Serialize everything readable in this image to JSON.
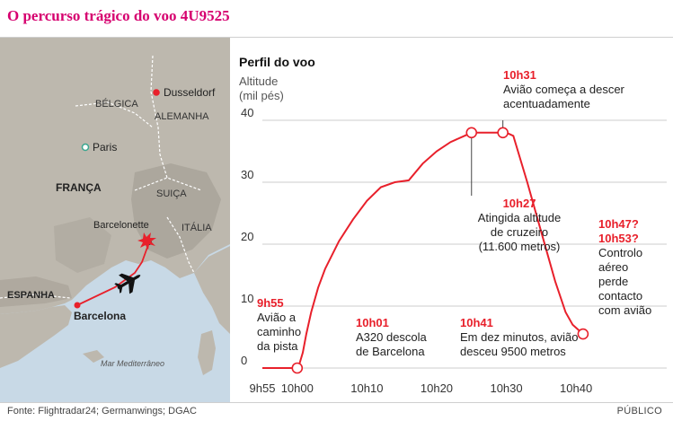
{
  "title": "O percurso trágico do voo 4U9525",
  "source": "Fonte: Flightradar24; Germanwings; DGAC",
  "brand": "PÚBLICO",
  "colors": {
    "accent": "#d6006f",
    "line": "#e8202b",
    "grid": "#cccccc",
    "sea": "#c8d9e6",
    "land": "#b9b5ac"
  },
  "map": {
    "labels": {
      "belgica": "BÉLGICA",
      "alemanha": "ALEMANHA",
      "franca": "FRANÇA",
      "suica": "SUIÇA",
      "italia": "ITÁLIA",
      "espanha": "ESPANHA",
      "mar": "Mar Mediterrâneo"
    },
    "cities": {
      "dusseldorf": "Dusseldorf",
      "paris": "Paris",
      "barcelonette": "Barcelonette",
      "barcelona": "Barcelona"
    },
    "icons": [
      "airplane-icon",
      "crash-burst-icon"
    ]
  },
  "chart_data": {
    "type": "line",
    "title": "Perfil do voo",
    "ylabel": "Altitude (mil pés)",
    "ylabel_lines": [
      "Altitude",
      "(mil pés)"
    ],
    "ylim": [
      0,
      40
    ],
    "yticks": [
      0,
      10,
      20,
      30,
      40
    ],
    "xticks": [
      "9h55",
      "10h00",
      "10h10",
      "10h20",
      "10h30",
      "10h40"
    ],
    "xticks_minutes": [
      -5,
      0,
      10,
      20,
      30,
      40
    ],
    "points": [
      [
        -5,
        0
      ],
      [
        0,
        0
      ],
      [
        0.3,
        0.6
      ],
      [
        0.8,
        2.5
      ],
      [
        1.3,
        5.5
      ],
      [
        2,
        9
      ],
      [
        3,
        13
      ],
      [
        4,
        16
      ],
      [
        6,
        20.5
      ],
      [
        8,
        24
      ],
      [
        10,
        27
      ],
      [
        12,
        29.2
      ],
      [
        14,
        30
      ],
      [
        16,
        30.3
      ],
      [
        18,
        33
      ],
      [
        20,
        35
      ],
      [
        22,
        36.5
      ],
      [
        24,
        37.5
      ],
      [
        25,
        38
      ],
      [
        26,
        38
      ],
      [
        29.5,
        38
      ],
      [
        30,
        38
      ],
      [
        31,
        37.5
      ],
      [
        33,
        30
      ],
      [
        35,
        22
      ],
      [
        37,
        14
      ],
      [
        38.5,
        9
      ],
      [
        39.5,
        7
      ],
      [
        40,
        6.5
      ],
      [
        41,
        5.5
      ]
    ],
    "markers": [
      [
        0,
        0
      ],
      [
        25,
        38
      ],
      [
        29.5,
        38
      ],
      [
        41,
        5.5
      ]
    ],
    "annotations": [
      {
        "time": "9h55",
        "lines": [
          "Avião a",
          "caminho",
          "da pista"
        ]
      },
      {
        "time": "10h01",
        "lines": [
          "A320 descola",
          "de Barcelona"
        ]
      },
      {
        "time": "10h27",
        "lines": [
          "Atingida altitude",
          "de cruzeiro",
          "(11.600 metros)"
        ]
      },
      {
        "time": "10h31",
        "lines": [
          "Avião começa a descer",
          "acentuadamente"
        ]
      },
      {
        "time": "10h41",
        "lines": [
          "Em dez minutos, avião",
          "desceu 9500 metros"
        ]
      },
      {
        "time": "10h47?",
        "time2": "10h53?",
        "lines": [
          "Controlo",
          "aéreo",
          "perde",
          "contacto",
          "com avião"
        ]
      }
    ]
  }
}
